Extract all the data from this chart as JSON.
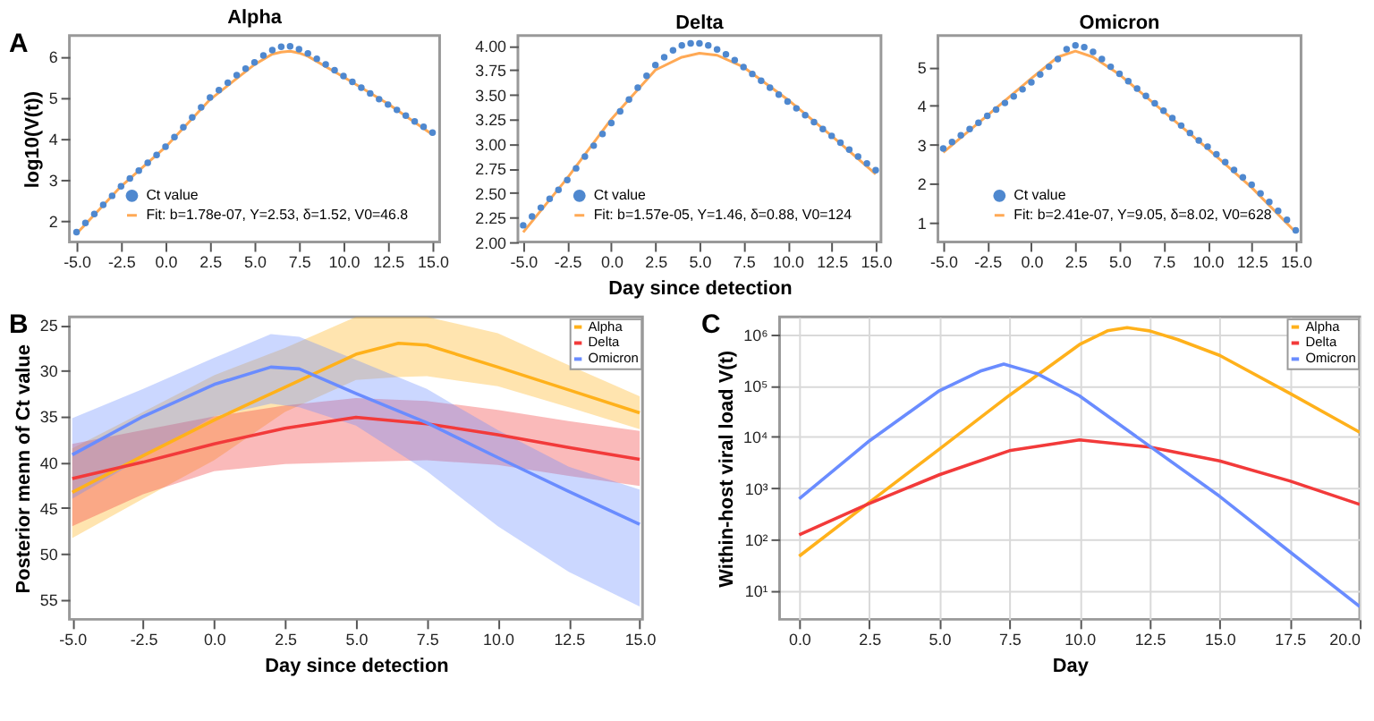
{
  "chart_data": [
    {
      "type": "scatter",
      "title": "Alpha",
      "ylabel": "log10(V(t))",
      "annotations": [
        "A"
      ],
      "legend": "bottom",
      "xlim": [
        -5.4,
        15.4
      ],
      "ylim": [
        1.5,
        6.5
      ],
      "xticks": [
        {
          "value": -5,
          "label": "-5.0"
        },
        {
          "value": -2.5,
          "label": "-2.5"
        },
        {
          "value": 0,
          "label": "0.0"
        },
        {
          "value": 2.5,
          "label": "2.5"
        },
        {
          "value": 5,
          "label": "5.0"
        },
        {
          "value": 7.5,
          "label": "7.5"
        },
        {
          "value": 10,
          "label": "10.0"
        },
        {
          "value": 12.5,
          "label": "12.5"
        },
        {
          "value": 15,
          "label": "15.0"
        }
      ],
      "yticks": [
        2,
        3,
        4,
        5,
        6
      ],
      "series": [
        {
          "name": "Ct value",
          "type": "scatter",
          "marker": "circle",
          "color": "#4f88cf",
          "x": [
            -5,
            -4.5,
            -4,
            -3.5,
            -3,
            -2.5,
            -2,
            -1.5,
            -1,
            -0.5,
            0,
            0.5,
            1,
            1.5,
            2,
            2.5,
            3,
            3.5,
            4,
            4.5,
            5,
            5.5,
            6,
            6.5,
            7,
            7.5,
            8,
            8.5,
            9,
            9.5,
            10,
            10.5,
            11,
            11.5,
            12,
            12.5,
            13,
            13.5,
            14,
            14.5,
            15
          ],
          "values": [
            1.74,
            1.96,
            2.18,
            2.4,
            2.62,
            2.85,
            3.04,
            3.23,
            3.42,
            3.61,
            3.81,
            4.04,
            4.28,
            4.52,
            4.76,
            5.0,
            5.18,
            5.36,
            5.54,
            5.7,
            5.85,
            6.02,
            6.15,
            6.23,
            6.24,
            6.17,
            6.07,
            5.94,
            5.8,
            5.66,
            5.52,
            5.38,
            5.24,
            5.1,
            4.96,
            4.83,
            4.7,
            4.56,
            4.42,
            4.29,
            4.15
          ]
        },
        {
          "name": "Fit: b=1.78e-07, Y=2.53, δ=1.52, V0=46.8",
          "type": "line",
          "color": "#ffa955",
          "x": [
            -5,
            -2.5,
            0,
            2.5,
            5,
            6,
            6.5,
            7,
            7.5,
            8,
            10,
            12.5,
            15
          ],
          "values": [
            1.7,
            2.85,
            3.8,
            4.95,
            5.8,
            6.05,
            6.1,
            6.12,
            6.08,
            6.0,
            5.5,
            4.85,
            4.1
          ]
        }
      ]
    },
    {
      "type": "scatter",
      "title": "Delta",
      "xlabel": "Day since detection",
      "legend": "bottom",
      "xlim": [
        -5.3,
        15.3
      ],
      "ylim": [
        2.0,
        4.1
      ],
      "xticks": [
        {
          "value": -5,
          "label": "-5.0"
        },
        {
          "value": -2.5,
          "label": "-2.5"
        },
        {
          "value": 0,
          "label": "0.0"
        },
        {
          "value": 2.5,
          "label": "2.5"
        },
        {
          "value": 5,
          "label": "5.0"
        },
        {
          "value": 7.5,
          "label": "7.5"
        },
        {
          "value": 10,
          "label": "10.0"
        },
        {
          "value": 12.5,
          "label": "12.5"
        },
        {
          "value": 15,
          "label": "15.0"
        }
      ],
      "yticks": [
        {
          "value": 2,
          "label": "2.00"
        },
        {
          "value": 2.25,
          "label": "2.25"
        },
        {
          "value": 2.5,
          "label": "2.50"
        },
        {
          "value": 2.75,
          "label": "2.75"
        },
        {
          "value": 3,
          "label": "3.00"
        },
        {
          "value": 3.25,
          "label": "3.25"
        },
        {
          "value": 3.5,
          "label": "3.50"
        },
        {
          "value": 3.75,
          "label": "3.75"
        },
        {
          "value": 4,
          "label": "4.00"
        }
      ],
      "series": [
        {
          "name": "Ct value",
          "type": "scatter",
          "marker": "circle",
          "color": "#4f88cf",
          "x": [
            -5,
            -4.5,
            -4,
            -3.5,
            -3,
            -2.5,
            -2,
            -1.5,
            -1,
            -0.5,
            0,
            0.5,
            1,
            1.5,
            2,
            2.5,
            3,
            3.5,
            4,
            4.5,
            5,
            5.5,
            6,
            6.5,
            7,
            7.5,
            8,
            8.5,
            9,
            9.5,
            10,
            10.5,
            11,
            11.5,
            12,
            12.5,
            13,
            13.5,
            14,
            14.5,
            15
          ],
          "values": [
            2.17,
            2.26,
            2.35,
            2.44,
            2.53,
            2.63,
            2.75,
            2.87,
            2.98,
            3.1,
            3.21,
            3.33,
            3.45,
            3.57,
            3.69,
            3.8,
            3.88,
            3.95,
            4.0,
            4.02,
            4.02,
            4.0,
            3.96,
            3.91,
            3.85,
            3.78,
            3.71,
            3.64,
            3.57,
            3.5,
            3.43,
            3.36,
            3.29,
            3.22,
            3.15,
            3.08,
            3.01,
            2.94,
            2.87,
            2.8,
            2.73
          ]
        },
        {
          "name": "Fit: b=1.57e-05, Y=1.46, δ=0.88, V0=124",
          "type": "line",
          "color": "#ffa955",
          "x": [
            -5,
            -2.5,
            0,
            2.5,
            4,
            5,
            6,
            7.5,
            10,
            12.5,
            15
          ],
          "values": [
            2.1,
            2.65,
            3.25,
            3.75,
            3.88,
            3.92,
            3.9,
            3.78,
            3.45,
            3.08,
            2.69
          ]
        }
      ]
    },
    {
      "type": "scatter",
      "title": "Omicron",
      "legend": "bottom",
      "xlim": [
        -5.3,
        15.3
      ],
      "ylim": [
        0.5,
        5.8
      ],
      "xticks": [
        {
          "value": -5,
          "label": "-5.0"
        },
        {
          "value": -2.5,
          "label": "-2.5"
        },
        {
          "value": 0,
          "label": "0.0"
        },
        {
          "value": 2.5,
          "label": "2.5"
        },
        {
          "value": 5,
          "label": "5.0"
        },
        {
          "value": 7.5,
          "label": "7.5"
        },
        {
          "value": 10,
          "label": "10.0"
        },
        {
          "value": 12.5,
          "label": "12.5"
        },
        {
          "value": 15,
          "label": "15.0"
        }
      ],
      "yticks": [
        1,
        2,
        3,
        4,
        5
      ],
      "series": [
        {
          "name": "Ct value",
          "type": "scatter",
          "marker": "circle",
          "color": "#4f88cf",
          "x": [
            -5,
            -4.5,
            -4,
            -3.5,
            -3,
            -2.5,
            -2,
            -1.5,
            -1,
            -0.5,
            0,
            0.5,
            1,
            1.5,
            2,
            2.5,
            3,
            3.5,
            4,
            4.5,
            5,
            5.5,
            6,
            6.5,
            7,
            7.5,
            8,
            8.5,
            9,
            9.5,
            10,
            10.5,
            11,
            11.5,
            12,
            12.5,
            13,
            13.5,
            14,
            14.5,
            15
          ],
          "values": [
            2.9,
            3.07,
            3.24,
            3.4,
            3.56,
            3.74,
            3.9,
            4.07,
            4.24,
            4.42,
            4.6,
            4.8,
            5.0,
            5.2,
            5.45,
            5.55,
            5.5,
            5.38,
            5.2,
            5.0,
            4.82,
            4.63,
            4.44,
            4.25,
            4.06,
            3.87,
            3.68,
            3.49,
            3.3,
            3.11,
            2.95,
            2.75,
            2.55,
            2.35,
            2.16,
            1.97,
            1.75,
            1.53,
            1.3,
            1.07,
            0.8
          ]
        },
        {
          "name": "Fit: b=2.41e-07, Y=9.05, δ=8.02, V0=628",
          "type": "line",
          "color": "#ffa955",
          "x": [
            -5,
            -2.5,
            0,
            1.5,
            2.5,
            3.5,
            5,
            7.5,
            10,
            12.5,
            15
          ],
          "values": [
            2.8,
            3.75,
            4.7,
            5.25,
            5.4,
            5.25,
            4.8,
            3.85,
            2.9,
            1.9,
            0.75
          ]
        }
      ]
    },
    {
      "type": "line",
      "xlabel": "Day since detection",
      "ylabel": "Posterior menn of Ct value",
      "annotations": [
        "B"
      ],
      "legend": "top right",
      "xlim": [
        -5.1,
        15.1
      ],
      "ylim": [
        57.2,
        24.1
      ],
      "xticks": [
        {
          "value": -5,
          "label": "-5.0"
        },
        {
          "value": -2.5,
          "label": "-2.5"
        },
        {
          "value": 0,
          "label": "0.0"
        },
        {
          "value": 2.5,
          "label": "2.5"
        },
        {
          "value": 5,
          "label": "5.0"
        },
        {
          "value": 7.5,
          "label": "7.5"
        },
        {
          "value": 10,
          "label": "10.0"
        },
        {
          "value": 12.5,
          "label": "12.5"
        },
        {
          "value": 15,
          "label": "15.0"
        }
      ],
      "yticks": [
        25,
        30,
        35,
        40,
        45,
        50,
        55
      ],
      "series": [
        {
          "name": "Alpha",
          "color": "#ffb11b",
          "x": [
            -5,
            -2.5,
            0,
            2.5,
            5,
            6.5,
            7.5,
            10,
            12.5,
            15
          ],
          "values": [
            43.3,
            39.3,
            35.4,
            31.8,
            28.2,
            27.0,
            27.2,
            29.6,
            32.1,
            34.6
          ],
          "lower": [
            38.5,
            34.5,
            30.5,
            27.5,
            24.1,
            24.1,
            24.1,
            25.9,
            29.4,
            32.8
          ],
          "upper": [
            48.3,
            44.0,
            39.8,
            34.5,
            31.0,
            30.7,
            30.6,
            31.7,
            34.0,
            36.4
          ]
        },
        {
          "name": "Delta",
          "color": "#f23a3a",
          "x": [
            -5,
            -2.5,
            0,
            2.5,
            5,
            7.5,
            10,
            12.5,
            15
          ],
          "values": [
            41.8,
            40.0,
            38.0,
            36.3,
            35.1,
            35.8,
            37.0,
            38.4,
            39.7
          ],
          "lower": [
            38.0,
            36.5,
            35.0,
            33.8,
            33.0,
            33.3,
            34.3,
            35.5,
            36.6
          ],
          "upper": [
            47.0,
            43.5,
            41.0,
            40.2,
            40.0,
            39.8,
            40.3,
            41.5,
            42.6
          ]
        },
        {
          "name": "Omicron",
          "color": "#6a8cff",
          "x": [
            -5,
            -2.5,
            0,
            2,
            3,
            5,
            7.5,
            10,
            12.5,
            15
          ],
          "values": [
            39.2,
            35.0,
            31.5,
            29.6,
            29.8,
            32.5,
            35.7,
            39.5,
            43.2,
            46.8
          ],
          "lower": [
            35.2,
            32.0,
            28.6,
            26.0,
            26.3,
            28.8,
            32.0,
            36.5,
            40.5,
            43.0
          ],
          "upper": [
            44.0,
            39.5,
            35.0,
            33.6,
            34.0,
            36.0,
            41.0,
            47.0,
            52.0,
            55.8
          ]
        }
      ]
    },
    {
      "type": "line",
      "xlabel": "Day",
      "ylabel": "Within-host viral load V(t)",
      "annotations": [
        "C"
      ],
      "legend": "top right",
      "grid": true,
      "log": "y",
      "xlim": [
        -0.7,
        20
      ],
      "ylim": [
        2.75,
        2200000
      ],
      "xticks": [
        {
          "value": 0,
          "label": "0.0"
        },
        {
          "value": 2.5,
          "label": "2.5"
        },
        {
          "value": 5,
          "label": "5.0"
        },
        {
          "value": 7.5,
          "label": "7.5"
        },
        {
          "value": 10,
          "label": "10.0"
        },
        {
          "value": 12.5,
          "label": "12.5"
        },
        {
          "value": 15,
          "label": "15.0"
        },
        {
          "value": 17.5,
          "label": "17.5"
        },
        {
          "value": 20,
          "label": "20.0"
        }
      ],
      "yticks": [
        {
          "value": 10,
          "label": "10¹"
        },
        {
          "value": 100,
          "label": "10²"
        },
        {
          "value": 1000,
          "label": "10³"
        },
        {
          "value": 10000,
          "label": "10⁴"
        },
        {
          "value": 100000,
          "label": "10⁵"
        },
        {
          "value": 1000000,
          "label": "10⁶"
        }
      ],
      "series": [
        {
          "name": "Alpha",
          "color": "#ffb11b",
          "x": [
            0,
            2.5,
            5,
            7.5,
            10,
            11,
            11.7,
            12.5,
            13.5,
            15,
            17.5,
            20
          ],
          "values": [
            47,
            525,
            5750,
            64600,
            631000,
            1170000,
            1350000,
            1170000,
            794000,
            389000,
            70800,
            12300
          ]
        },
        {
          "name": "Delta",
          "color": "#f23a3a",
          "x": [
            0,
            2.5,
            5,
            7.5,
            10,
            12.5,
            15,
            17.5,
            20
          ],
          "values": [
            123,
            500,
            1820,
            5370,
            8710,
            6310,
            3390,
            1380,
            480
          ]
        },
        {
          "name": "Omicron",
          "color": "#6a8cff",
          "x": [
            0,
            2.5,
            5,
            6.5,
            7.3,
            8.5,
            10,
            12.5,
            15,
            17.5,
            20
          ],
          "values": [
            617,
            8320,
            79400,
            195000,
            263000,
            170000,
            63100,
            6610,
            692,
            57.5,
            4.9
          ]
        }
      ]
    }
  ]
}
